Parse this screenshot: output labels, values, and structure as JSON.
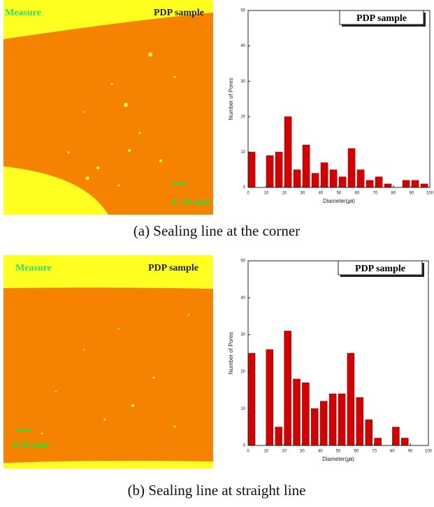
{
  "images": [
    {
      "labels": [
        "Measure",
        "PDP sample",
        "0. 50 mm"
      ]
    },
    {
      "labels": [
        "Measure",
        "PDP sample",
        "0.50 mm"
      ]
    }
  ],
  "chart_data": [
    {
      "type": "histogram",
      "caption": "(a) Sealing line at the corner",
      "xlabel": "Diameter(㎛)",
      "ylabel": "Number of Pores",
      "bins": [
        0,
        5,
        10,
        15,
        20,
        25,
        30,
        35,
        40,
        45,
        50,
        55,
        60,
        65,
        70,
        75,
        80,
        85,
        90,
        95,
        100
      ],
      "series": [
        {
          "name": "PDP sample",
          "color": "#d40000",
          "values": [
            10,
            0,
            9,
            10,
            20,
            5,
            12,
            4,
            7,
            5,
            3,
            11,
            5,
            2,
            3,
            1,
            0,
            2,
            2,
            1
          ]
        }
      ],
      "xlim": [
        0,
        100
      ],
      "xticks": [
        0,
        10,
        20,
        30,
        40,
        50,
        60,
        70,
        80,
        90,
        100
      ],
      "ylim": [
        0,
        50
      ],
      "yticks": [
        0,
        10,
        20,
        30,
        40,
        50
      ]
    },
    {
      "type": "histogram",
      "caption": "(b) Sealing line at straight line",
      "xlabel": "Diameter(㎛)",
      "ylabel": "Number of Pores",
      "bins": [
        0,
        5,
        10,
        15,
        20,
        25,
        30,
        35,
        40,
        45,
        50,
        55,
        60,
        65,
        70,
        75,
        80,
        85,
        90,
        95,
        100
      ],
      "series": [
        {
          "name": "PDP sample",
          "color": "#d40000",
          "values": [
            25,
            0,
            26,
            5,
            31,
            18,
            17,
            10,
            12,
            14,
            14,
            25,
            13,
            7,
            2,
            0,
            5,
            2,
            0,
            0
          ]
        }
      ],
      "xlim": [
        0,
        100
      ],
      "xticks": [
        0,
        10,
        20,
        30,
        40,
        50,
        60,
        70,
        80,
        90,
        100
      ],
      "ylim": [
        0,
        50
      ],
      "yticks": [
        0,
        10,
        20,
        30,
        40,
        50
      ]
    }
  ]
}
